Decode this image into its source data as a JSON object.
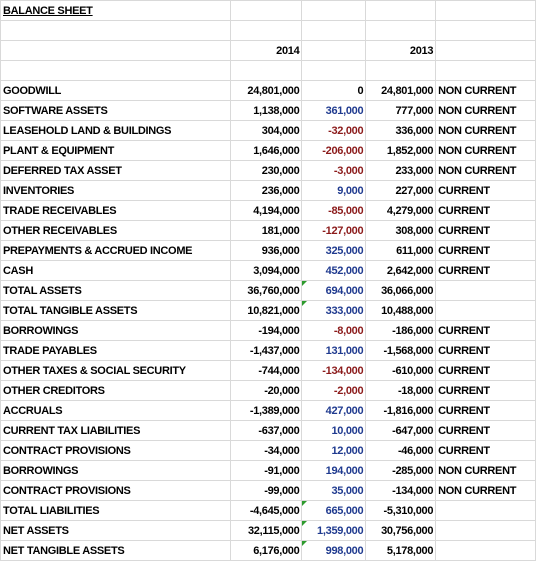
{
  "header": {
    "title": "BALANCE SHEET",
    "year_a": "2014",
    "year_b": "2013"
  },
  "table": {
    "rows": [
      [
        "GOODWILL",
        "24,801,000",
        "0",
        "24,801,000",
        "NON CURRENT"
      ],
      [
        "SOFTWARE ASSETS",
        "1,138,000",
        "361,000",
        "777,000",
        "NON CURRENT"
      ],
      [
        "LEASEHOLD LAND & BUILDINGS",
        "304,000",
        "-32,000",
        "336,000",
        "NON CURRENT"
      ],
      [
        "PLANT & EQUIPMENT",
        "1,646,000",
        "-206,000",
        "1,852,000",
        "NON CURRENT"
      ],
      [
        "DEFERRED TAX ASSET",
        "230,000",
        "-3,000",
        "233,000",
        "NON CURRENT"
      ],
      [
        "INVENTORIES",
        "236,000",
        "9,000",
        "227,000",
        "CURRENT"
      ],
      [
        "TRADE RECEIVABLES",
        "4,194,000",
        "-85,000",
        "4,279,000",
        "CURRENT"
      ],
      [
        "OTHER RECEIVABLES",
        "181,000",
        "-127,000",
        "308,000",
        "CURRENT"
      ],
      [
        "PREPAYMENTS & ACCRUED INCOME",
        "936,000",
        "325,000",
        "611,000",
        "CURRENT"
      ],
      [
        "CASH",
        "3,094,000",
        "452,000",
        "2,642,000",
        "CURRENT"
      ],
      [
        "TOTAL ASSETS",
        "36,760,000",
        "694,000",
        "36,066,000",
        null
      ],
      [
        "TOTAL TANGIBLE ASSETS",
        "10,821,000",
        "333,000",
        "10,488,000",
        null
      ],
      [
        "BORROWINGS",
        "-194,000",
        "-8,000",
        "-186,000",
        "CURRENT"
      ],
      [
        "TRADE PAYABLES",
        "-1,437,000",
        "131,000",
        "-1,568,000",
        "CURRENT"
      ],
      [
        "OTHER TAXES & SOCIAL SECURITY",
        "-744,000",
        "-134,000",
        "-610,000",
        "CURRENT"
      ],
      [
        "OTHER CREDITORS",
        "-20,000",
        "-2,000",
        "-18,000",
        "CURRENT"
      ],
      [
        "ACCRUALS",
        "-1,389,000",
        "427,000",
        "-1,816,000",
        "CURRENT"
      ],
      [
        "CURRENT TAX LIABILITIES",
        "-637,000",
        "10,000",
        "-647,000",
        "CURRENT"
      ],
      [
        "CONTRACT PROVISIONS",
        "-34,000",
        "12,000",
        "-46,000",
        "CURRENT"
      ],
      [
        "BORROWINGS",
        "-91,000",
        "194,000",
        "-285,000",
        "NON CURRENT"
      ],
      [
        "CONTRACT PROVISIONS",
        "-99,000",
        "35,000",
        "-134,000",
        "NON CURRENT"
      ],
      [
        "TOTAL LIABILITIES",
        "-4,645,000",
        "665,000",
        "-5,310,000",
        null
      ],
      [
        "NET ASSETS",
        "32,115,000",
        "1,359,000",
        "30,756,000",
        null
      ],
      [
        "NET TANGIBLE ASSETS",
        "6,176,000",
        "998,000",
        "5,178,000",
        null
      ]
    ]
  }
}
